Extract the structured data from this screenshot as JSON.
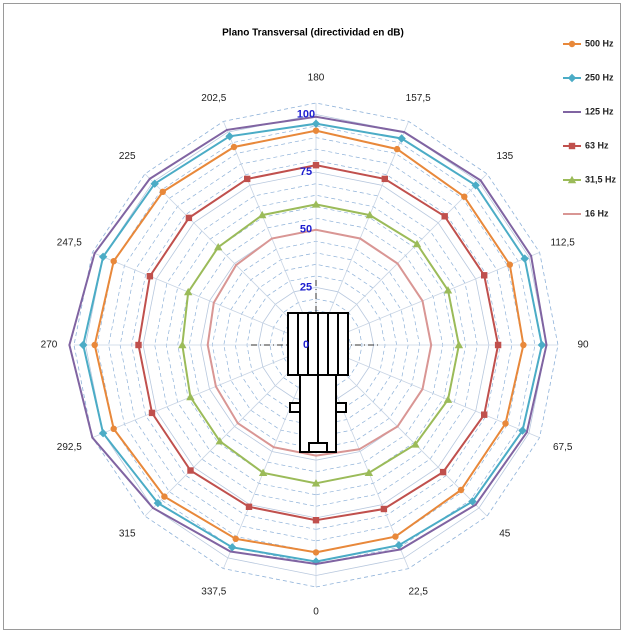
{
  "chart_data": {
    "type": "radar",
    "title": "Plano Transversal (directividad en dB)",
    "categories": [
      "0",
      "22,5",
      "45",
      "67,5",
      "90",
      "112,5",
      "135",
      "157,5",
      "180",
      "202,5",
      "225",
      "247,5",
      "270",
      "292,5",
      "315",
      "337,5"
    ],
    "ylim": [
      0,
      105
    ],
    "yticks": [
      0,
      25,
      50,
      75,
      100
    ],
    "legend": "right",
    "series": [
      {
        "name": "500 Hz",
        "color": "#e8883a",
        "marker": "circle",
        "values": [
          90,
          90,
          89,
          89,
          90,
          91,
          91,
          92,
          93,
          93,
          94,
          95,
          96,
          95,
          93,
          91
        ]
      },
      {
        "name": "250 Hz",
        "color": "#4bacc6",
        "marker": "diamond",
        "values": [
          94,
          94,
          96,
          97,
          98,
          98,
          98,
          97,
          96,
          98,
          99,
          100,
          101,
          100,
          97,
          95
        ]
      },
      {
        "name": "125 Hz",
        "color": "#8064a2",
        "marker": "none",
        "values": [
          95,
          96,
          98,
          99,
          100,
          101,
          101,
          100,
          99,
          101,
          102,
          104,
          107,
          105,
          100,
          97
        ]
      },
      {
        "name": "63 Hz",
        "color": "#c0504d",
        "marker": "square",
        "values": [
          76,
          77,
          78,
          79,
          79,
          79,
          79,
          78,
          78,
          78,
          78,
          78,
          77,
          77,
          77,
          76
        ]
      },
      {
        "name": "31,5 Hz",
        "color": "#9bbb59",
        "marker": "triangle",
        "values": [
          60,
          60,
          61,
          62,
          62,
          62,
          62,
          61,
          61,
          61,
          60,
          60,
          58,
          59,
          59,
          60
        ]
      },
      {
        "name": "16 Hz",
        "color": "#d99694",
        "marker": "none",
        "values": [
          48,
          49,
          50,
          50,
          50,
          50,
          50,
          50,
          50,
          50,
          49,
          48,
          47,
          47,
          48,
          48
        ]
      }
    ]
  }
}
